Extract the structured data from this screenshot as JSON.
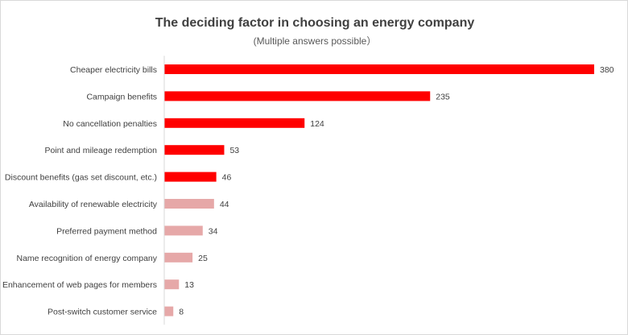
{
  "chart_data": {
    "type": "bar",
    "orientation": "horizontal",
    "title": "The deciding factor in choosing an energy company",
    "subtitle": "(Multiple answers possible）",
    "xlabel": "",
    "ylabel": "",
    "xlim": [
      0,
      380
    ],
    "grid": false,
    "legend": "none",
    "colors": {
      "highlight": "#ff0000",
      "muted": "#e6a8a8"
    },
    "bars": [
      {
        "label": "Cheaper electricity bills",
        "value": 380,
        "highlight": true
      },
      {
        "label": "Campaign benefits",
        "value": 235,
        "highlight": true
      },
      {
        "label": "No cancellation penalties",
        "value": 124,
        "highlight": true
      },
      {
        "label": "Point and mileage redemption",
        "value": 53,
        "highlight": true
      },
      {
        "label": "Discount benefits (gas set discount, etc.)",
        "value": 46,
        "highlight": true
      },
      {
        "label": "Availability of renewable electricity",
        "value": 44,
        "highlight": false
      },
      {
        "label": "Preferred payment method",
        "value": 34,
        "highlight": false
      },
      {
        "label": "Name recognition of energy company",
        "value": 25,
        "highlight": false
      },
      {
        "label": "Enhancement of web pages for members",
        "value": 13,
        "highlight": false
      },
      {
        "label": "Post-switch customer service",
        "value": 8,
        "highlight": false
      }
    ]
  }
}
